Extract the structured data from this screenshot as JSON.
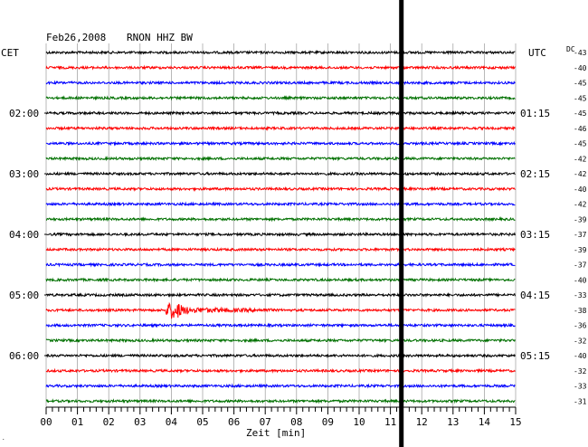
{
  "header": {
    "date": "Feb26,2008",
    "station": "RNON HHZ BW",
    "left_tz": "CET",
    "right_tz": "UTC",
    "dc_label": "DC"
  },
  "chart_data": {
    "type": "line",
    "title": "Feb26,2008  RNON HHZ BW",
    "xlabel": "Zeit [min]",
    "xlim": [
      0,
      15
    ],
    "x_ticks": [
      "00",
      "01",
      "02",
      "03",
      "04",
      "05",
      "06",
      "07",
      "08",
      "09",
      "10",
      "11",
      "12",
      "13",
      "14",
      "15"
    ],
    "grid": true,
    "rows": 24,
    "minutes_per_row": 15,
    "row_colors": [
      "#000000",
      "#ff0000",
      "#0000ff",
      "#007000"
    ],
    "left_hour_labels": [
      {
        "row": 4,
        "text": "02:00"
      },
      {
        "row": 8,
        "text": "03:00"
      },
      {
        "row": 12,
        "text": "04:00"
      },
      {
        "row": 16,
        "text": "05:00"
      },
      {
        "row": 20,
        "text": "06:00"
      }
    ],
    "right_hour_labels": [
      {
        "row": 4,
        "text": "01:15"
      },
      {
        "row": 8,
        "text": "02:15"
      },
      {
        "row": 12,
        "text": "03:15"
      },
      {
        "row": 16,
        "text": "04:15"
      },
      {
        "row": 20,
        "text": "05:15"
      }
    ],
    "dc_offsets": [
      -43,
      -40,
      -45,
      -45,
      -45,
      -46,
      -45,
      -42,
      -42,
      -40,
      -42,
      -39,
      -37,
      -39,
      -37,
      -40,
      -33,
      -38,
      -36,
      -32,
      -40,
      -32,
      -33,
      -31
    ],
    "events": [
      {
        "row": 17,
        "start_min": 3.8,
        "peak_min": 4.1,
        "end_min": 7.2
      }
    ],
    "vertical_marker_min": 11.35
  }
}
